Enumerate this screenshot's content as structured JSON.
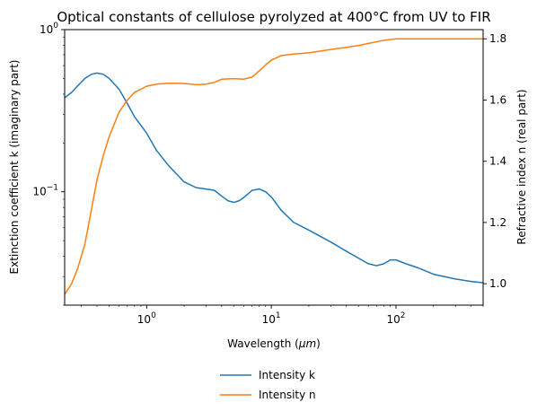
{
  "chart_data": {
    "type": "line",
    "title": "Optical constants of cellulose pyrolyzed at 400°C from UV to FIR",
    "xlabel": "Wavelength (μm)",
    "ylabel_left": "Extinction coefficient k (imaginary part)",
    "ylabel_right": "Refractive index n (real part)",
    "x_scale": "log",
    "y_left_scale": "log",
    "y_right_scale": "linear",
    "xlim": [
      0.22,
      500
    ],
    "ylim_left": [
      0.02,
      1.0
    ],
    "ylim_right": [
      0.93,
      1.83
    ],
    "x_ticks": [
      {
        "value": 1,
        "label": "10",
        "exp": "0"
      },
      {
        "value": 10,
        "label": "10",
        "exp": "1"
      },
      {
        "value": 100,
        "label": "10",
        "exp": "2"
      }
    ],
    "y_left_ticks": [
      {
        "value": 1,
        "label": "10",
        "exp": "0"
      },
      {
        "value": 0.1,
        "label": "10",
        "exp": "−1"
      }
    ],
    "y_right_ticks": [
      "1.0",
      "1.2",
      "1.4",
      "1.6",
      "1.8"
    ],
    "grid": false,
    "legend_position": "below",
    "series": [
      {
        "name": "Intensity k",
        "axis": "left",
        "color": "#1f77b4",
        "x": [
          0.22,
          0.25,
          0.28,
          0.32,
          0.36,
          0.4,
          0.45,
          0.5,
          0.6,
          0.7,
          0.8,
          1.0,
          1.2,
          1.5,
          2.0,
          2.5,
          3.0,
          3.5,
          4.0,
          4.5,
          5.0,
          5.5,
          6.0,
          7.0,
          8.0,
          9.0,
          10.0,
          12.0,
          15.0,
          20.0,
          30.0,
          40.0,
          50.0,
          60.0,
          70.0,
          80.0,
          90.0,
          100.0,
          120.0,
          150.0,
          200.0,
          300.0,
          400.0,
          500.0
        ],
        "values": [
          0.38,
          0.41,
          0.45,
          0.5,
          0.53,
          0.54,
          0.53,
          0.5,
          0.43,
          0.35,
          0.29,
          0.23,
          0.18,
          0.145,
          0.115,
          0.106,
          0.104,
          0.102,
          0.094,
          0.088,
          0.086,
          0.088,
          0.092,
          0.102,
          0.104,
          0.1,
          0.093,
          0.077,
          0.065,
          0.058,
          0.049,
          0.043,
          0.039,
          0.036,
          0.035,
          0.036,
          0.038,
          0.038,
          0.036,
          0.034,
          0.031,
          0.029,
          0.028,
          0.0275
        ]
      },
      {
        "name": "Intensity n",
        "axis": "right",
        "color": "#ff7f0e",
        "x": [
          0.22,
          0.25,
          0.28,
          0.32,
          0.36,
          0.4,
          0.45,
          0.5,
          0.6,
          0.7,
          0.8,
          1.0,
          1.2,
          1.5,
          2.0,
          2.5,
          3.0,
          3.5,
          4.0,
          5.0,
          6.0,
          7.0,
          8.0,
          9.0,
          10.0,
          12.0,
          15.0,
          20.0,
          30.0,
          40.0,
          50.0,
          60.0,
          80.0,
          100.0,
          150.0,
          200.0,
          300.0,
          500.0
        ],
        "values": [
          0.965,
          1.0,
          1.05,
          1.13,
          1.24,
          1.34,
          1.42,
          1.48,
          1.56,
          1.6,
          1.625,
          1.645,
          1.652,
          1.655,
          1.654,
          1.65,
          1.652,
          1.658,
          1.668,
          1.67,
          1.668,
          1.675,
          1.695,
          1.715,
          1.73,
          1.745,
          1.75,
          1.754,
          1.765,
          1.772,
          1.778,
          1.785,
          1.795,
          1.8,
          1.8,
          1.8,
          1.8,
          1.8
        ]
      }
    ]
  }
}
